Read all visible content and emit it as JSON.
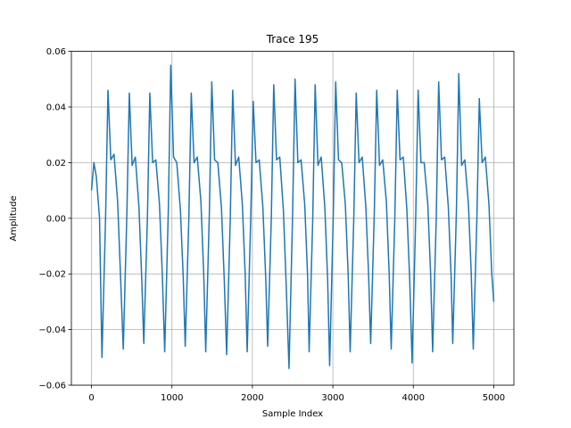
{
  "chart_data": {
    "type": "line",
    "title": "Trace 195",
    "x_label": "Sample Index",
    "y_label": "Amplitude",
    "x": [
      0,
      30,
      60,
      100,
      130,
      175,
      205,
      240,
      280,
      325,
      360,
      395,
      440,
      470,
      505,
      545,
      590,
      625,
      650,
      695,
      725,
      760,
      800,
      845,
      880,
      910,
      955,
      985,
      1020,
      1060,
      1105,
      1140,
      1165,
      1210,
      1240,
      1275,
      1315,
      1360,
      1395,
      1420,
      1465,
      1495,
      1530,
      1570,
      1615,
      1650,
      1680,
      1725,
      1755,
      1790,
      1830,
      1875,
      1910,
      1935,
      1980,
      2010,
      2045,
      2085,
      2130,
      2165,
      2190,
      2235,
      2265,
      2300,
      2340,
      2385,
      2420,
      2455,
      2500,
      2530,
      2565,
      2605,
      2650,
      2685,
      2705,
      2750,
      2780,
      2815,
      2855,
      2900,
      2935,
      2960,
      3005,
      3035,
      3070,
      3110,
      3155,
      3190,
      3215,
      3260,
      3290,
      3325,
      3365,
      3410,
      3445,
      3470,
      3515,
      3545,
      3580,
      3620,
      3665,
      3700,
      3725,
      3770,
      3800,
      3835,
      3875,
      3920,
      3955,
      3985,
      4030,
      4060,
      4095,
      4135,
      4180,
      4215,
      4240,
      4285,
      4315,
      4350,
      4390,
      4435,
      4470,
      4490,
      4535,
      4565,
      4600,
      4640,
      4685,
      4720,
      4745,
      4790,
      4820,
      4855,
      4895,
      4940,
      4975,
      5000
    ],
    "series": [
      {
        "name": "Trace 195",
        "color": "#1f77b4",
        "values": [
          0.01,
          0.02,
          0.015,
          0.0,
          -0.05,
          0.0,
          0.046,
          0.021,
          0.023,
          0.006,
          -0.02,
          -0.047,
          0.002,
          0.045,
          0.019,
          0.022,
          0.004,
          -0.022,
          -0.045,
          0.0,
          0.045,
          0.02,
          0.021,
          0.005,
          -0.02,
          -0.048,
          0.003,
          0.055,
          0.022,
          0.02,
          0.003,
          -0.021,
          -0.046,
          0.0,
          0.045,
          0.02,
          0.022,
          0.006,
          -0.02,
          -0.048,
          0.002,
          0.049,
          0.021,
          0.02,
          0.004,
          -0.022,
          -0.049,
          0.0,
          0.046,
          0.019,
          0.022,
          0.005,
          -0.02,
          -0.048,
          0.001,
          0.042,
          0.02,
          0.021,
          0.004,
          -0.021,
          -0.046,
          0.0,
          0.048,
          0.021,
          0.022,
          0.003,
          -0.024,
          -0.054,
          0.002,
          0.05,
          0.02,
          0.021,
          0.005,
          -0.02,
          -0.048,
          0.0,
          0.048,
          0.019,
          0.022,
          0.004,
          -0.022,
          -0.053,
          0.001,
          0.049,
          0.021,
          0.02,
          0.005,
          -0.02,
          -0.048,
          0.0,
          0.045,
          0.02,
          0.022,
          0.004,
          -0.021,
          -0.045,
          0.002,
          0.046,
          0.019,
          0.021,
          0.006,
          -0.02,
          -0.047,
          0.0,
          0.046,
          0.021,
          0.022,
          0.003,
          -0.022,
          -0.052,
          0.001,
          0.046,
          0.02,
          0.02,
          0.005,
          -0.02,
          -0.048,
          0.0,
          0.049,
          0.021,
          0.022,
          0.004,
          -0.021,
          -0.045,
          0.002,
          0.052,
          0.019,
          0.021,
          0.005,
          -0.02,
          -0.047,
          0.0,
          0.043,
          0.02,
          0.022,
          0.005,
          -0.02,
          -0.03
        ]
      }
    ],
    "xlim": [
      -250,
      5250
    ],
    "xticks": [
      0,
      1000,
      2000,
      3000,
      4000,
      5000
    ],
    "ylim": [
      -0.06,
      0.06
    ],
    "yticks": [
      {
        "value": -0.06,
        "label": "−0.06"
      },
      {
        "value": -0.04,
        "label": "−0.04"
      },
      {
        "value": -0.02,
        "label": "−0.02"
      },
      {
        "value": 0,
        "label": "0.00"
      },
      {
        "value": 0.02,
        "label": "0.02"
      },
      {
        "value": 0.04,
        "label": "0.04"
      },
      {
        "value": 0.06,
        "label": "0.06"
      }
    ],
    "grid": true
  }
}
